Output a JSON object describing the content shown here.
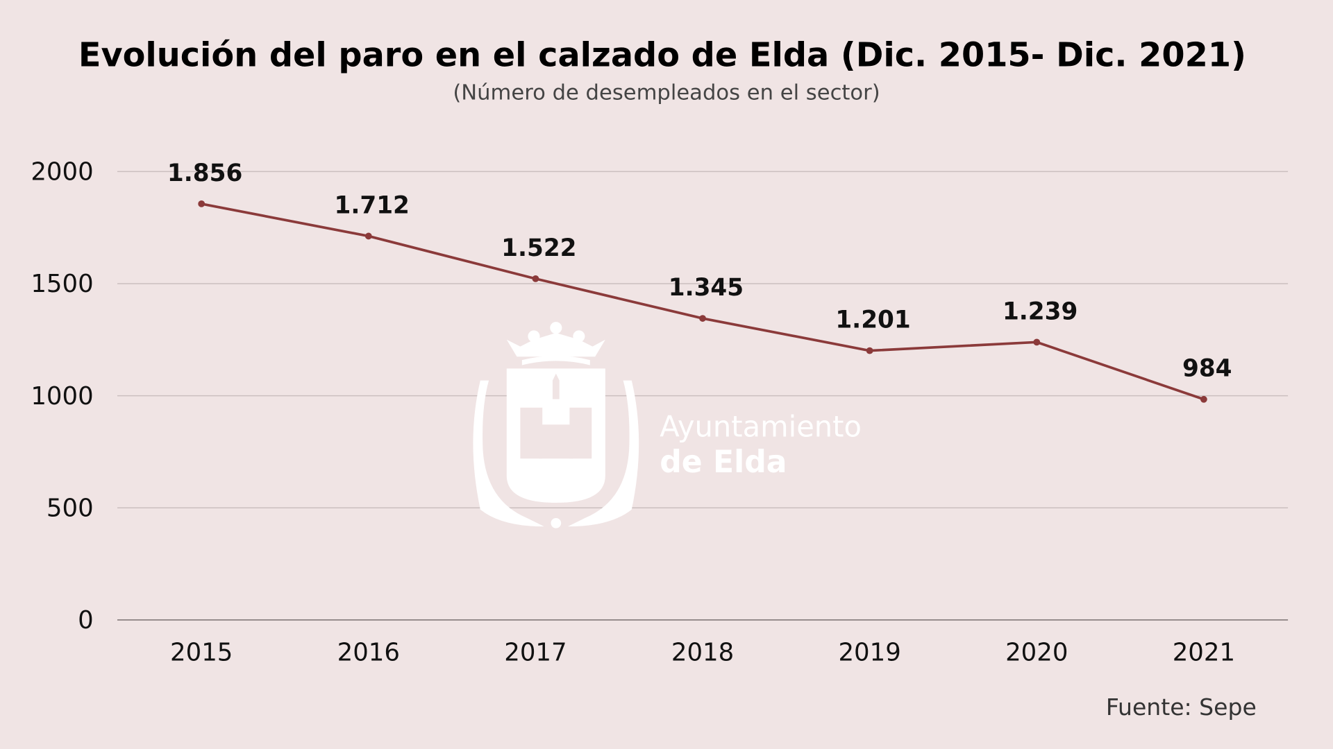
{
  "chart_data": {
    "type": "line",
    "title": "Evolución del paro en el calzado de Elda (Dic. 2015- Dic. 2021)",
    "subtitle": "(Número de desempleados en el sector)",
    "xlabel": "",
    "ylabel": "",
    "categories": [
      "2015",
      "2016",
      "2017",
      "2018",
      "2019",
      "2020",
      "2021"
    ],
    "values": [
      1856,
      1712,
      1522,
      1345,
      1201,
      1239,
      984
    ],
    "data_labels": [
      "1.856",
      "1.712",
      "1.522",
      "1.345",
      "1.201",
      "1.239",
      "984"
    ],
    "ylim": [
      0,
      2000
    ],
    "yticks": [
      "0",
      "500",
      "1000",
      "1500",
      "2000"
    ],
    "grid": true,
    "line_color": "#8b3a3a",
    "background_color": "#f0e4e4",
    "source": "Fuente: Sepe"
  },
  "watermark": {
    "line1": "Ayuntamiento",
    "line2": "de Elda"
  }
}
